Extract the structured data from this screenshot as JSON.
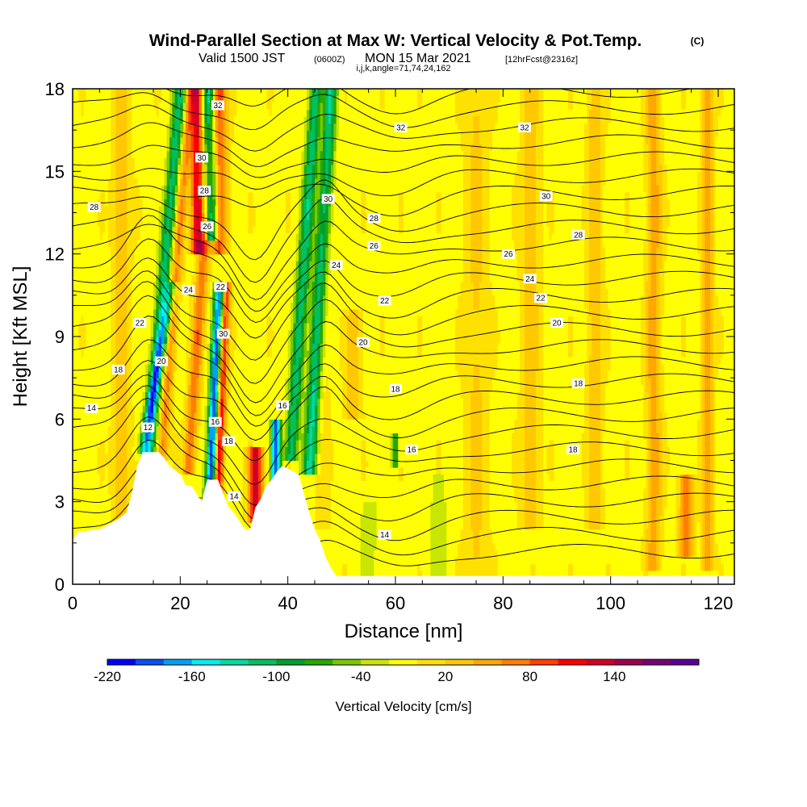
{
  "header": {
    "title": "Wind-Parallel Section at Max W: Vertical Velocity & Pot.Temp.",
    "copyright": "(C)",
    "subtitle_valid": "Valid 1500 JST",
    "subtitle_utc": "(0600Z)",
    "subtitle_date": "MON 15 Mar 2021",
    "subtitle_fcst": "[12hrFcst@2316z]",
    "subtitle_ijk": "i,j,k,angle=71,74,24,162"
  },
  "colorbar": {
    "label": "Vertical Velocity [cm/s]",
    "tick_labels": [
      "-220",
      "-160",
      "-100",
      "-40",
      "20",
      "80",
      "140"
    ],
    "colors": [
      "#0000ff",
      "#0a50f0",
      "#00a0f5",
      "#00f0f0",
      "#00dca0",
      "#00c060",
      "#00a030",
      "#28a800",
      "#78c800",
      "#c8e600",
      "#ffff00",
      "#ffe100",
      "#ffc800",
      "#ffa800",
      "#ff8000",
      "#ff4000",
      "#ff0000",
      "#d20028",
      "#a00050",
      "#780078",
      "#5a0096"
    ],
    "levels_start": -220,
    "level_step": 20
  },
  "chart_data": {
    "type": "heatmap",
    "xlabel": "Distance [nm]",
    "ylabel": "Height [Kft MSL]",
    "xlim": [
      0,
      123
    ],
    "ylim": [
      0,
      18
    ],
    "x_ticks": [
      0,
      20,
      40,
      60,
      80,
      100,
      120
    ],
    "y_ticks": [
      0,
      3,
      6,
      9,
      12,
      15,
      18
    ],
    "field": "vertical velocity (cm/s), shaded",
    "contour_field": "potential temperature, contoured",
    "terrain": [
      [
        0,
        1.6
      ],
      [
        1,
        1.9
      ],
      [
        5,
        2.0
      ],
      [
        8,
        2.3
      ],
      [
        10,
        2.6
      ],
      [
        11,
        3.3
      ],
      [
        12,
        4.3
      ],
      [
        13,
        4.8
      ],
      [
        16,
        4.8
      ],
      [
        17,
        4.6
      ],
      [
        18,
        4.3
      ],
      [
        20,
        4.0
      ],
      [
        21,
        3.6
      ],
      [
        22,
        3.6
      ],
      [
        23,
        3.3
      ],
      [
        24,
        3.0
      ],
      [
        25,
        3.8
      ],
      [
        27,
        3.8
      ],
      [
        28,
        3.3
      ],
      [
        29,
        2.8
      ],
      [
        30,
        2.6
      ],
      [
        31,
        2.3
      ],
      [
        32,
        2.0
      ],
      [
        33,
        2.0
      ],
      [
        34,
        2.8
      ],
      [
        35,
        3.1
      ],
      [
        36,
        3.6
      ],
      [
        37,
        3.8
      ],
      [
        38,
        4.1
      ],
      [
        39,
        4.3
      ],
      [
        42,
        4.0
      ],
      [
        43,
        3.3
      ],
      [
        44,
        2.6
      ],
      [
        45,
        2.0
      ],
      [
        46,
        1.6
      ],
      [
        47,
        1.0
      ],
      [
        48,
        0.6
      ],
      [
        49,
        0.3
      ],
      [
        50,
        0.3
      ],
      [
        123,
        0.3
      ]
    ],
    "contour_labels": [
      {
        "x": 4,
        "y": 13.7,
        "text": "28"
      },
      {
        "x": 27,
        "y": 17.4,
        "text": "32"
      },
      {
        "x": 24,
        "y": 15.5,
        "text": "30"
      },
      {
        "x": 24.5,
        "y": 14.3,
        "text": "28"
      },
      {
        "x": 25,
        "y": 13.0,
        "text": "26"
      },
      {
        "x": 21.5,
        "y": 10.7,
        "text": "24"
      },
      {
        "x": 27.5,
        "y": 10.8,
        "text": "22"
      },
      {
        "x": 28,
        "y": 9.1,
        "text": "30"
      },
      {
        "x": 12.5,
        "y": 9.5,
        "text": "22"
      },
      {
        "x": 16.5,
        "y": 8.1,
        "text": "20"
      },
      {
        "x": 8.5,
        "y": 7.8,
        "text": "18"
      },
      {
        "x": 3.5,
        "y": 6.4,
        "text": "14"
      },
      {
        "x": 14,
        "y": 5.7,
        "text": "12"
      },
      {
        "x": 26.5,
        "y": 5.9,
        "text": "16"
      },
      {
        "x": 29,
        "y": 5.2,
        "text": "18"
      },
      {
        "x": 30,
        "y": 3.2,
        "text": "14"
      },
      {
        "x": 39,
        "y": 6.5,
        "text": "16"
      },
      {
        "x": 47.5,
        "y": 14.0,
        "text": "30"
      },
      {
        "x": 61,
        "y": 16.6,
        "text": "32"
      },
      {
        "x": 84,
        "y": 16.6,
        "text": "32"
      },
      {
        "x": 56,
        "y": 13.3,
        "text": "28"
      },
      {
        "x": 56,
        "y": 12.3,
        "text": "26"
      },
      {
        "x": 49,
        "y": 11.6,
        "text": "24"
      },
      {
        "x": 58,
        "y": 10.3,
        "text": "22"
      },
      {
        "x": 54,
        "y": 8.8,
        "text": "20"
      },
      {
        "x": 60,
        "y": 7.1,
        "text": "18"
      },
      {
        "x": 63,
        "y": 4.9,
        "text": "16"
      },
      {
        "x": 58,
        "y": 1.8,
        "text": "14"
      },
      {
        "x": 88,
        "y": 14.1,
        "text": "30"
      },
      {
        "x": 94,
        "y": 12.7,
        "text": "28"
      },
      {
        "x": 81,
        "y": 12.0,
        "text": "26"
      },
      {
        "x": 85,
        "y": 11.1,
        "text": "24"
      },
      {
        "x": 87,
        "y": 10.4,
        "text": "22"
      },
      {
        "x": 90,
        "y": 9.5,
        "text": "20"
      },
      {
        "x": 94,
        "y": 7.3,
        "text": "18"
      },
      {
        "x": 93,
        "y": 4.9,
        "text": "18"
      }
    ]
  }
}
